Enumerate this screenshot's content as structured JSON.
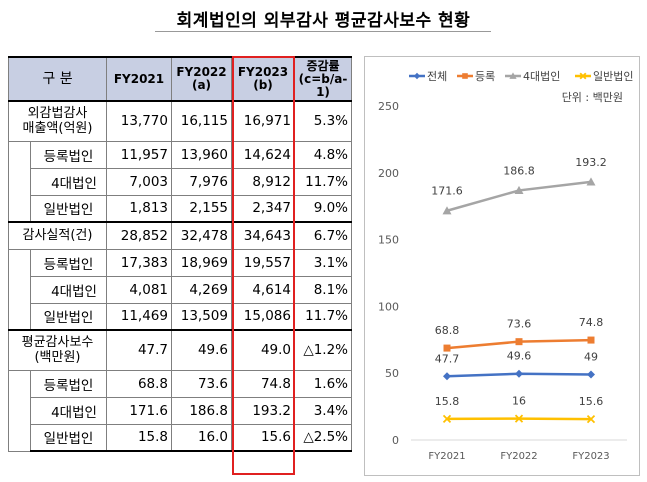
{
  "title": "회계법인의 외부감사 평균감사보수 현황",
  "table": {
    "headers": [
      {
        "label": "구 분"
      },
      {
        "label": "FY2021"
      },
      {
        "label": "FY2022\n(a)"
      },
      {
        "label": "FY2023\n(b)"
      },
      {
        "label": "증감률\n(c=b/a-1)"
      }
    ],
    "groups": [
      {
        "label": "외감법감사\n매출액(억원)",
        "values": [
          "13,770",
          "16,115",
          "16,971",
          "5.3%"
        ],
        "subrows": [
          {
            "label": "등록법인",
            "values": [
              "11,957",
              "13,960",
              "14,624",
              "4.8%"
            ]
          },
          {
            "label": "4대법인",
            "values": [
              "7,003",
              "7,976",
              "8,912",
              "11.7%"
            ]
          },
          {
            "label": "일반법인",
            "values": [
              "1,813",
              "2,155",
              "2,347",
              "9.0%"
            ]
          }
        ]
      },
      {
        "label": "감사실적(건)",
        "values": [
          "28,852",
          "32,478",
          "34,643",
          "6.7%"
        ],
        "subrows": [
          {
            "label": "등록법인",
            "values": [
              "17,383",
              "18,969",
              "19,557",
              "3.1%"
            ]
          },
          {
            "label": "4대법인",
            "values": [
              "4,081",
              "4,269",
              "4,614",
              "8.1%"
            ]
          },
          {
            "label": "일반법인",
            "values": [
              "11,469",
              "13,509",
              "15,086",
              "11.7%"
            ]
          }
        ]
      },
      {
        "label": "평균감사보수\n(백만원)",
        "values": [
          "47.7",
          "49.6",
          "49.0",
          "△1.2%"
        ],
        "subrows": [
          {
            "label": "등록법인",
            "values": [
              "68.8",
              "73.6",
              "74.8",
              "1.6%"
            ]
          },
          {
            "label": "4대법인",
            "values": [
              "171.6",
              "186.8",
              "193.2",
              "3.4%"
            ]
          },
          {
            "label": "일반법인",
            "values": [
              "15.8",
              "16.0",
              "15.6",
              "△2.5%"
            ]
          }
        ]
      }
    ]
  },
  "chart_data": {
    "type": "line",
    "unit_note": "단위 : 백만원",
    "categories": [
      "FY2021",
      "FY2022",
      "FY2023"
    ],
    "ylim": [
      0,
      250
    ],
    "yticks": [
      0,
      50,
      100,
      150,
      200,
      250
    ],
    "legend_position": "top",
    "series": [
      {
        "name": "전체",
        "color": "#4472c4",
        "marker": "diamond",
        "values": [
          47.7,
          49.6,
          49
        ],
        "labels": [
          "47.7",
          "49.6",
          "49"
        ]
      },
      {
        "name": "등록",
        "color": "#ed7d31",
        "marker": "square",
        "values": [
          68.8,
          73.6,
          74.8
        ],
        "labels": [
          "68.8",
          "73.6",
          "74.8"
        ]
      },
      {
        "name": "4대법인",
        "color": "#a5a5a5",
        "marker": "triangle",
        "values": [
          171.6,
          186.8,
          193.2
        ],
        "labels": [
          "171.6",
          "186.8",
          "193.2"
        ]
      },
      {
        "name": "일반법인",
        "color": "#ffc000",
        "marker": "x",
        "values": [
          15.8,
          16,
          15.6
        ],
        "labels": [
          "15.8",
          "16",
          "15.6"
        ]
      }
    ]
  }
}
